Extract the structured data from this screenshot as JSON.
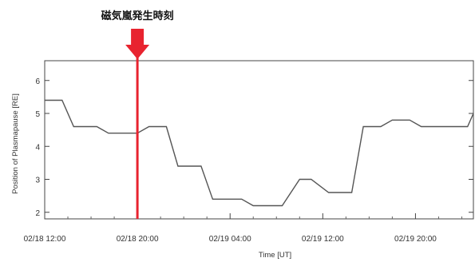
{
  "chart_data": {
    "type": "line",
    "title": "",
    "xlabel": "Time [UT]",
    "ylabel": "Position of Plasmapause [RE]",
    "x_tick_labels": [
      "02/18 12:00",
      "02/18 20:00",
      "02/19 04:00",
      "02/19 12:00",
      "02/19 20:00"
    ],
    "x_tick_hours": [
      0,
      8,
      16,
      24,
      32
    ],
    "xlim": [
      0,
      37
    ],
    "ylim": [
      1.8,
      6.6
    ],
    "y_ticks": [
      2,
      3,
      4,
      5,
      6
    ],
    "grid": false,
    "series": [
      {
        "x": [
          0,
          1.5,
          2.5,
          4.5,
          5.5,
          7.5,
          8.0,
          9.0,
          10.5,
          11.5,
          13.5,
          14.5,
          16.5,
          17.0,
          18.0,
          19.5,
          20.5,
          22.0,
          23.0,
          24.5,
          25.5,
          26.5,
          27.5,
          29.0,
          30.0,
          31.5,
          32.5,
          34.0,
          35.0,
          36.5,
          37.0
        ],
        "y": [
          5.4,
          5.4,
          4.6,
          4.6,
          4.4,
          4.4,
          4.4,
          4.6,
          4.6,
          3.4,
          3.4,
          2.4,
          2.4,
          2.4,
          2.2,
          2.2,
          2.2,
          3.0,
          3.0,
          2.6,
          2.6,
          2.6,
          4.6,
          4.6,
          4.8,
          4.8,
          4.6,
          4.6,
          4.6,
          4.6,
          5.0
        ],
        "color": "#555555"
      }
    ],
    "annotation": {
      "label": "磁気嵐発生時刻",
      "x": 8.0,
      "line_color": "#e8232f",
      "arrow_color": "#e8232f"
    }
  }
}
